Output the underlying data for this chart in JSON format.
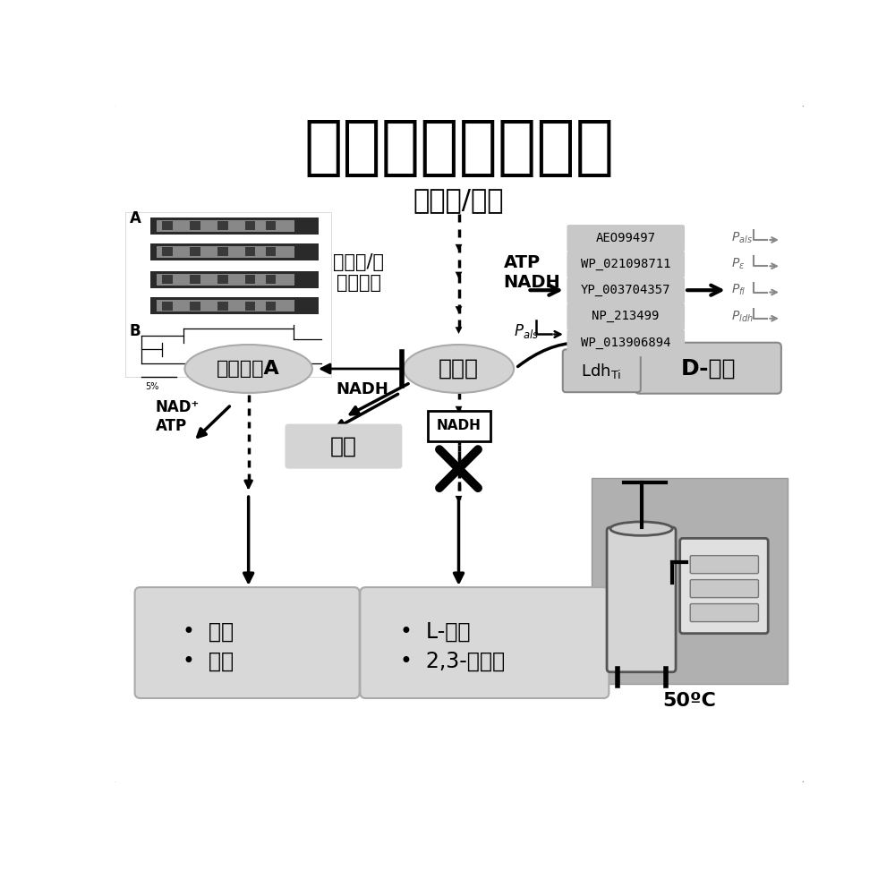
{
  "title": "耐热地衣芽孢杆菌",
  "sugar": "葡萄糖/木糖",
  "glycolysis": "糖酵解/戊\n醣酸途径",
  "atp_nadh": "ATP\nNADH",
  "pyruvate": "丙酮酸",
  "acetyl_coa": "乙酰辅酶A",
  "d_lactic": "D-乳酸",
  "formate": "甲酸",
  "nadh": "NADH",
  "nadh2": "NADH",
  "nad_atp": "NAD+\nATP",
  "ethanol_box": "•  乙醇\n•  乙酸",
  "lactic_box": "•  L-乳酸\n•  2,3-丁二醇",
  "temp": "50ºC",
  "accessions": [
    "AEO99497",
    "WP_021098711",
    "YP_003704357",
    "NP_213499",
    "WP_013906894"
  ],
  "ellipse_color": "#d3d3d3",
  "box_gray": "#c8c8c8",
  "light_gray": "#d8d8d8",
  "arrow_color": "#111111",
  "outer_border": "#888888"
}
